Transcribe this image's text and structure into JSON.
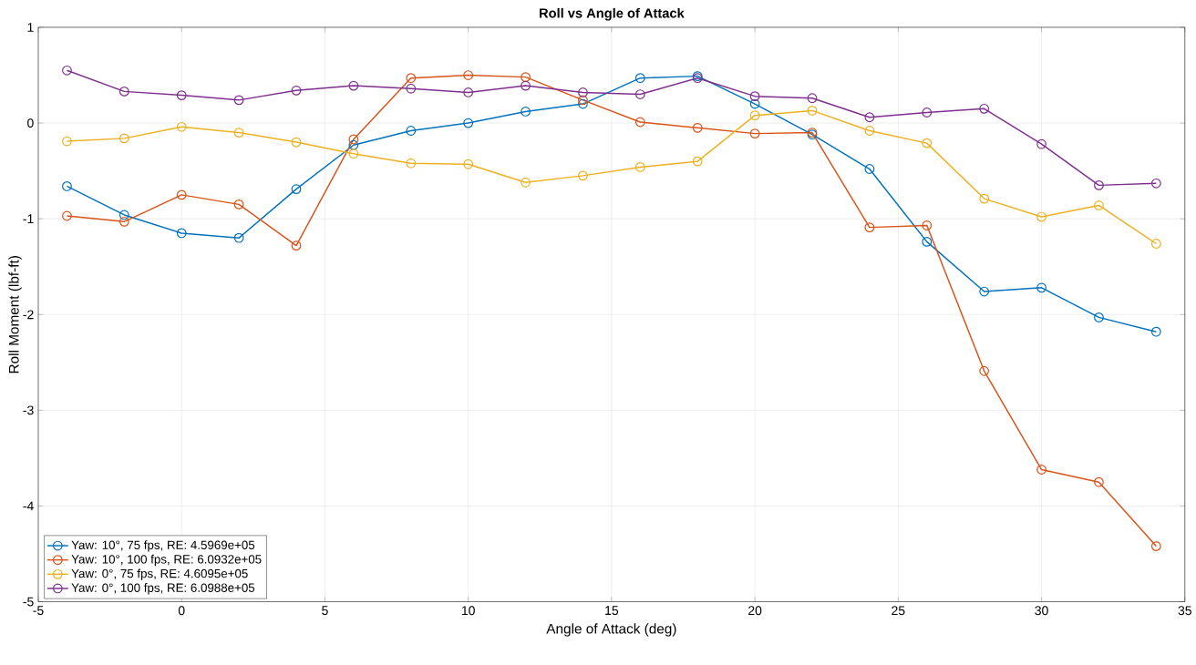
{
  "chart_data": {
    "type": "line",
    "title": "Roll vs Angle of Attack",
    "xlabel": "Angle of Attack (deg)",
    "ylabel": "Roll Moment (lbf-ft)",
    "x": [
      -4,
      -2,
      0,
      2,
      4,
      6,
      8,
      10,
      12,
      14,
      16,
      18,
      20,
      22,
      24,
      26,
      28,
      30,
      32,
      34
    ],
    "series": [
      {
        "name": "Yaw: 10°, 75 fps, RE: 4.5969e+05",
        "color": "#0072bd",
        "values": [
          -0.66,
          -0.96,
          -1.15,
          -1.2,
          -0.69,
          -0.23,
          -0.08,
          0.0,
          0.12,
          0.2,
          0.47,
          0.49,
          0.2,
          -0.12,
          -0.48,
          -1.24,
          -1.76,
          -1.72,
          -2.03,
          -2.18
        ]
      },
      {
        "name": "Yaw: 10°, 100 fps, RE: 6.0932e+05",
        "color": "#d95319",
        "values": [
          -0.97,
          -1.03,
          -0.75,
          -0.85,
          -1.28,
          -0.17,
          0.47,
          0.5,
          0.48,
          0.24,
          0.01,
          -0.05,
          -0.11,
          -0.1,
          -1.09,
          -1.07,
          -2.59,
          -3.62,
          -3.75,
          -4.42
        ]
      },
      {
        "name": "Yaw: 0°, 75 fps, RE: 4.6095e+05",
        "color": "#edb120",
        "values": [
          -0.19,
          -0.16,
          -0.04,
          -0.1,
          -0.2,
          -0.32,
          -0.42,
          -0.43,
          -0.62,
          -0.55,
          -0.46,
          -0.4,
          0.08,
          0.13,
          -0.08,
          -0.21,
          -0.79,
          -0.98,
          -0.86,
          -1.26
        ]
      },
      {
        "name": "Yaw: 0°, 100 fps, RE: 6.0988e+05",
        "color": "#7e2f8e",
        "values": [
          0.55,
          0.33,
          0.29,
          0.24,
          0.34,
          0.39,
          0.36,
          0.32,
          0.39,
          0.32,
          0.3,
          0.47,
          0.28,
          0.26,
          0.06,
          0.11,
          0.15,
          -0.22,
          -0.65,
          -0.63
        ]
      }
    ],
    "xlim": [
      -5,
      35
    ],
    "ylim": [
      -5,
      1
    ],
    "xticks": [
      -5,
      0,
      5,
      10,
      15,
      20,
      25,
      30,
      35
    ],
    "yticks": [
      -5,
      -4,
      -3,
      -2,
      -1,
      0,
      1
    ],
    "grid": true,
    "legend": "bottom left",
    "marker": "circle",
    "line_style": "solid"
  }
}
